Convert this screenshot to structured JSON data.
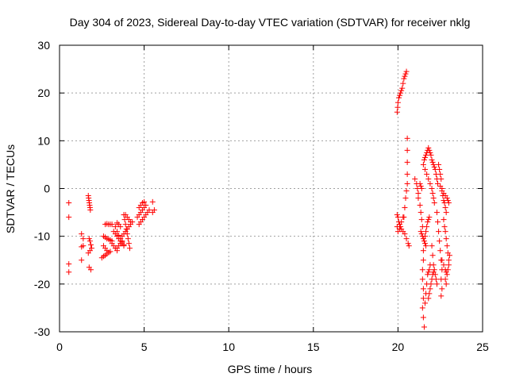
{
  "chart_data": {
    "type": "scatter",
    "title": "Day 304 of 2023, Sidereal Day-to-day VTEC variation (SDTVAR) for receiver nklg",
    "xlabel": "GPS time / hours",
    "ylabel": "SDTVAR / TECUs",
    "xlim": [
      0,
      25
    ],
    "ylim": [
      -30,
      30
    ],
    "xticks": [
      0,
      5,
      10,
      15,
      20,
      25
    ],
    "yticks": [
      -30,
      -20,
      -10,
      0,
      10,
      20,
      30
    ],
    "grid": true,
    "marker": "+",
    "color": "#ff0000",
    "series": [
      {
        "name": "SDTVAR",
        "points": [
          [
            0.55,
            -3.0
          ],
          [
            0.55,
            -6.0
          ],
          [
            0.55,
            -15.8
          ],
          [
            0.55,
            -17.5
          ],
          [
            1.3,
            -9.5
          ],
          [
            1.4,
            -10.5
          ],
          [
            1.3,
            -12.2
          ],
          [
            1.4,
            -12.0
          ],
          [
            1.3,
            -15.0
          ],
          [
            1.7,
            -1.5
          ],
          [
            1.72,
            -2.0
          ],
          [
            1.74,
            -2.5
          ],
          [
            1.76,
            -3.0
          ],
          [
            1.78,
            -3.5
          ],
          [
            1.8,
            -4.0
          ],
          [
            1.82,
            -4.5
          ],
          [
            1.75,
            -10.5
          ],
          [
            1.8,
            -11.0
          ],
          [
            1.85,
            -11.8
          ],
          [
            1.7,
            -13.5
          ],
          [
            1.8,
            -13.0
          ],
          [
            1.9,
            -12.5
          ],
          [
            1.75,
            -16.5
          ],
          [
            1.85,
            -17.0
          ],
          [
            2.5,
            -14.5
          ],
          [
            2.6,
            -14.2
          ],
          [
            2.7,
            -14.0
          ],
          [
            2.8,
            -13.7
          ],
          [
            2.9,
            -13.4
          ],
          [
            3.0,
            -13.2
          ],
          [
            2.6,
            -12.0
          ],
          [
            2.7,
            -12.5
          ],
          [
            2.8,
            -13.0
          ],
          [
            2.6,
            -10.0
          ],
          [
            2.7,
            -10.2
          ],
          [
            2.8,
            -10.5
          ],
          [
            2.9,
            -10.6
          ],
          [
            3.0,
            -10.8
          ],
          [
            3.1,
            -11.0
          ],
          [
            2.7,
            -7.5
          ],
          [
            2.8,
            -7.4
          ],
          [
            2.9,
            -7.5
          ],
          [
            3.0,
            -7.5
          ],
          [
            3.1,
            -7.5
          ],
          [
            3.1,
            -11.5
          ],
          [
            3.2,
            -12.0
          ],
          [
            3.3,
            -12.5
          ],
          [
            3.4,
            -13.0
          ],
          [
            3.2,
            -9.0
          ],
          [
            3.3,
            -9.5
          ],
          [
            3.4,
            -10.0
          ],
          [
            3.5,
            -10.5
          ],
          [
            3.6,
            -11.0
          ],
          [
            3.7,
            -11.5
          ],
          [
            3.8,
            -12.0
          ],
          [
            3.3,
            -8.0
          ],
          [
            3.4,
            -9.0
          ],
          [
            3.5,
            -9.8
          ],
          [
            3.6,
            -10.5
          ],
          [
            3.7,
            -11.2
          ],
          [
            3.8,
            -11.8
          ],
          [
            3.4,
            -12.5
          ],
          [
            3.5,
            -12.0
          ],
          [
            3.6,
            -11.5
          ],
          [
            3.7,
            -11.0
          ],
          [
            3.4,
            -7.2
          ],
          [
            3.5,
            -7.5
          ],
          [
            3.6,
            -8.0
          ],
          [
            3.8,
            -5.5
          ],
          [
            3.85,
            -6.5
          ],
          [
            3.9,
            -7.5
          ],
          [
            3.95,
            -8.5
          ],
          [
            4.0,
            -9.5
          ],
          [
            4.05,
            -10.5
          ],
          [
            4.1,
            -11.5
          ],
          [
            4.15,
            -12.5
          ],
          [
            3.7,
            -10.0
          ],
          [
            3.8,
            -9.5
          ],
          [
            3.9,
            -9.0
          ],
          [
            4.0,
            -8.5
          ],
          [
            4.1,
            -8.0
          ],
          [
            4.2,
            -7.5
          ],
          [
            4.3,
            -7.0
          ],
          [
            3.9,
            -5.5
          ],
          [
            4.0,
            -6.0
          ],
          [
            4.1,
            -6.5
          ],
          [
            4.2,
            -7.0
          ],
          [
            4.7,
            -7.5
          ],
          [
            4.8,
            -7.0
          ],
          [
            4.9,
            -6.5
          ],
          [
            5.0,
            -6.0
          ],
          [
            5.1,
            -5.5
          ],
          [
            5.2,
            -5.0
          ],
          [
            5.3,
            -4.5
          ],
          [
            4.6,
            -6.0
          ],
          [
            4.7,
            -5.5
          ],
          [
            4.8,
            -5.0
          ],
          [
            4.9,
            -4.5
          ],
          [
            5.0,
            -4.0
          ],
          [
            5.1,
            -3.5
          ],
          [
            4.7,
            -4.0
          ],
          [
            4.8,
            -3.5
          ],
          [
            4.9,
            -3.0
          ],
          [
            5.0,
            -2.8
          ],
          [
            5.5,
            -2.8
          ],
          [
            5.6,
            -4.5
          ],
          [
            5.5,
            -5.0
          ],
          [
            19.95,
            16.0
          ],
          [
            19.98,
            17.0
          ],
          [
            20.0,
            18.0
          ],
          [
            20.05,
            19.0
          ],
          [
            20.1,
            19.5
          ],
          [
            20.15,
            20.0
          ],
          [
            20.2,
            20.5
          ],
          [
            20.25,
            21.0
          ],
          [
            20.3,
            22.0
          ],
          [
            20.35,
            23.0
          ],
          [
            20.4,
            23.5
          ],
          [
            20.45,
            24.0
          ],
          [
            20.5,
            24.5
          ],
          [
            20.55,
            10.5
          ],
          [
            20.55,
            8.0
          ],
          [
            20.55,
            5.5
          ],
          [
            20.55,
            3.0
          ],
          [
            20.55,
            1.0
          ],
          [
            20.5,
            -0.5
          ],
          [
            20.45,
            -2.0
          ],
          [
            20.4,
            -4.0
          ],
          [
            20.35,
            -6.0
          ],
          [
            19.95,
            -5.5
          ],
          [
            20.0,
            -6.0
          ],
          [
            20.05,
            -7.0
          ],
          [
            20.1,
            -7.5
          ],
          [
            20.15,
            -8.0
          ],
          [
            20.2,
            -8.5
          ],
          [
            20.3,
            -9.0
          ],
          [
            20.4,
            -9.5
          ],
          [
            20.5,
            -10.5
          ],
          [
            20.6,
            -11.5
          ],
          [
            20.65,
            -12.0
          ],
          [
            19.95,
            -8.0
          ],
          [
            20.0,
            -9.0
          ],
          [
            20.1,
            -8.5
          ],
          [
            20.2,
            -7.0
          ],
          [
            20.3,
            -6.0
          ],
          [
            21.0,
            2.0
          ],
          [
            21.1,
            1.0
          ],
          [
            21.15,
            0.0
          ],
          [
            21.2,
            -1.0
          ],
          [
            21.2,
            -2.0
          ],
          [
            21.3,
            -3.5
          ],
          [
            21.35,
            -5.0
          ],
          [
            21.4,
            -6.5
          ],
          [
            21.45,
            -8.0
          ],
          [
            21.3,
            1.0
          ],
          [
            21.35,
            0.5
          ],
          [
            21.4,
            0.0
          ],
          [
            21.35,
            -9.0
          ],
          [
            21.4,
            -9.5
          ],
          [
            21.45,
            -10.0
          ],
          [
            21.5,
            -10.5
          ],
          [
            21.55,
            -11.0
          ],
          [
            21.6,
            -11.5
          ],
          [
            21.65,
            -12.0
          ],
          [
            21.5,
            -13.0
          ],
          [
            21.5,
            -15.0
          ],
          [
            21.45,
            -17.0
          ],
          [
            21.45,
            -19.0
          ],
          [
            21.5,
            -21.0
          ],
          [
            21.5,
            -23.0
          ],
          [
            21.45,
            -25.0
          ],
          [
            21.5,
            -27.0
          ],
          [
            21.55,
            -29.0
          ],
          [
            21.6,
            -24.0
          ],
          [
            21.65,
            -22.0
          ],
          [
            21.7,
            -20.0
          ],
          [
            21.75,
            -18.0
          ],
          [
            21.8,
            -17.5
          ],
          [
            21.85,
            -17.0
          ],
          [
            21.9,
            -16.0
          ],
          [
            21.6,
            -10.0
          ],
          [
            21.65,
            -9.0
          ],
          [
            21.7,
            -8.0
          ],
          [
            21.75,
            -7.0
          ],
          [
            21.8,
            -6.5
          ],
          [
            21.85,
            -6.0
          ],
          [
            21.5,
            5.0
          ],
          [
            21.55,
            6.0
          ],
          [
            21.6,
            6.5
          ],
          [
            21.65,
            7.0
          ],
          [
            21.7,
            7.5
          ],
          [
            21.75,
            8.0
          ],
          [
            21.8,
            8.5
          ],
          [
            21.85,
            8.0
          ],
          [
            21.9,
            7.5
          ],
          [
            21.95,
            7.0
          ],
          [
            21.6,
            4.0
          ],
          [
            21.7,
            3.0
          ],
          [
            21.8,
            2.0
          ],
          [
            21.9,
            1.0
          ],
          [
            22.0,
            0.0
          ],
          [
            22.05,
            -1.0
          ],
          [
            22.1,
            -2.0
          ],
          [
            22.15,
            -3.0
          ],
          [
            22.0,
            6.0
          ],
          [
            22.05,
            5.5
          ],
          [
            22.1,
            5.0
          ],
          [
            22.15,
            4.5
          ],
          [
            22.2,
            4.0
          ],
          [
            22.25,
            3.0
          ],
          [
            22.3,
            2.0
          ],
          [
            22.35,
            1.0
          ],
          [
            21.8,
            -23.0
          ],
          [
            21.85,
            -22.0
          ],
          [
            21.9,
            -21.0
          ],
          [
            21.95,
            -20.0
          ],
          [
            22.0,
            -19.0
          ],
          [
            22.05,
            -18.0
          ],
          [
            22.1,
            -17.5
          ],
          [
            22.0,
            -12.0
          ],
          [
            22.05,
            -14.0
          ],
          [
            22.1,
            -16.0
          ],
          [
            22.15,
            -17.0
          ],
          [
            22.2,
            -18.0
          ],
          [
            22.25,
            -19.0
          ],
          [
            22.3,
            -20.0
          ],
          [
            22.3,
            -5.0
          ],
          [
            22.35,
            -7.0
          ],
          [
            22.4,
            -9.0
          ],
          [
            22.45,
            -11.0
          ],
          [
            22.5,
            -13.0
          ],
          [
            22.55,
            -15.0
          ],
          [
            22.6,
            -17.0
          ],
          [
            22.55,
            -19.0
          ],
          [
            22.6,
            -21.0
          ],
          [
            22.55,
            -22.5
          ],
          [
            22.4,
            5.0
          ],
          [
            22.45,
            4.0
          ],
          [
            22.5,
            3.0
          ],
          [
            22.55,
            2.0
          ],
          [
            22.6,
            0.0
          ],
          [
            22.65,
            -1.5
          ],
          [
            22.7,
            -2.5
          ],
          [
            22.75,
            -3.0
          ],
          [
            22.8,
            -4.0
          ],
          [
            22.85,
            -5.0
          ],
          [
            22.5,
            0.5
          ],
          [
            22.6,
            -0.5
          ],
          [
            22.7,
            -1.0
          ],
          [
            22.8,
            -1.5
          ],
          [
            22.9,
            -2.0
          ],
          [
            22.95,
            -2.5
          ],
          [
            23.0,
            -3.0
          ],
          [
            22.7,
            -6.5
          ],
          [
            22.75,
            -8.0
          ],
          [
            22.8,
            -9.0
          ],
          [
            22.85,
            -10.5
          ],
          [
            22.9,
            -12.0
          ],
          [
            22.95,
            -13.5
          ],
          [
            23.0,
            -15.0
          ],
          [
            22.6,
            -15.0
          ],
          [
            22.7,
            -16.0
          ],
          [
            22.8,
            -17.0
          ],
          [
            22.85,
            -17.5
          ],
          [
            22.9,
            -18.0
          ],
          [
            22.95,
            -17.0
          ],
          [
            23.0,
            -16.0
          ],
          [
            23.05,
            -14.0
          ],
          [
            22.8,
            -19.0
          ],
          [
            22.85,
            -20.0
          ]
        ]
      }
    ]
  }
}
